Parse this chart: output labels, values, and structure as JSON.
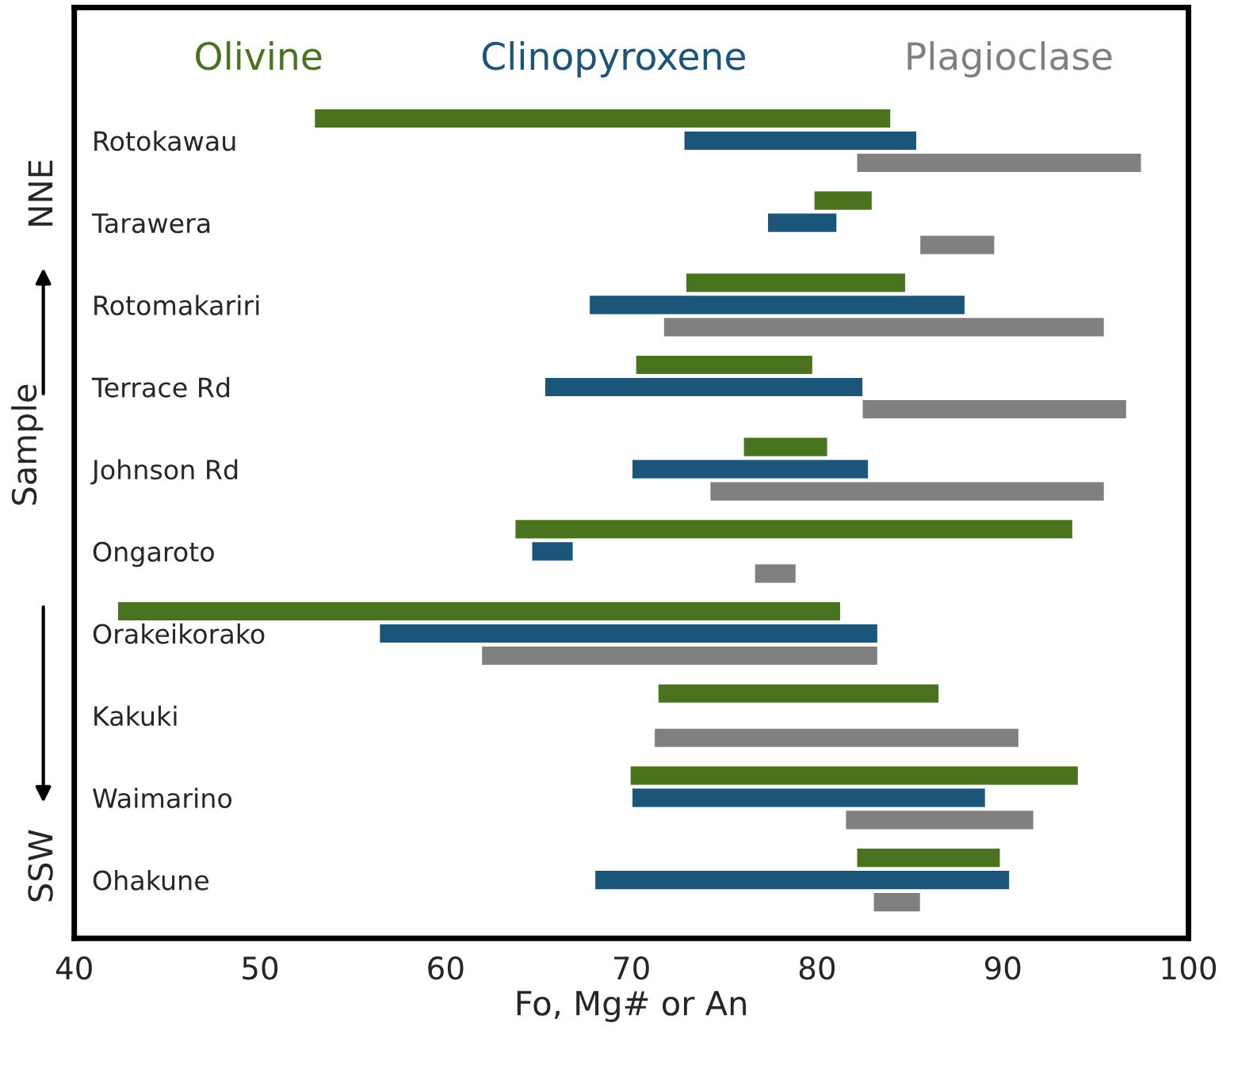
{
  "chart_data": {
    "type": "bar",
    "orientation": "horizontal",
    "xlabel": "Fo, Mg# or An",
    "ylabel": "Sample",
    "categories": [
      "Rotokawau",
      "Tarawera",
      "Rotomakariri",
      "Terrace Rd",
      "Johnson Rd",
      "Ongaroto",
      "Orakeikorako",
      "Kakuki",
      "Waimarino",
      "Ohakune"
    ],
    "series": [
      {
        "name": "Olivine",
        "color": "#4a7320",
        "base": [
          52.9,
          79.8,
          72.9,
          70.2,
          76.0,
          63.7,
          42.3,
          71.4,
          69.9,
          82.1
        ],
        "values": [
          31.1,
          3.2,
          11.9,
          9.6,
          4.6,
          30.1,
          39.0,
          15.2,
          24.2,
          7.8
        ]
      },
      {
        "name": "Clinopyroxene",
        "color": "#1b557a",
        "base": [
          72.8,
          77.3,
          67.7,
          65.3,
          70.0,
          64.6,
          56.4,
          null,
          70.0,
          68.0
        ],
        "values": [
          12.6,
          3.8,
          20.3,
          17.2,
          12.8,
          2.3,
          26.9,
          null,
          19.1,
          22.4
        ]
      },
      {
        "name": "Plagioclase",
        "color": "#808080",
        "base": [
          82.1,
          85.5,
          71.7,
          82.4,
          74.2,
          76.6,
          61.9,
          71.2,
          81.5,
          83.0
        ],
        "values": [
          15.4,
          4.1,
          23.8,
          14.3,
          21.3,
          2.3,
          21.4,
          19.7,
          10.2,
          2.6
        ]
      }
    ],
    "xlim": [
      40,
      100
    ],
    "xticks": [
      40,
      50,
      60,
      70,
      80,
      90,
      100
    ],
    "annotations": [
      "NNE",
      "SSW"
    ],
    "legend": "top",
    "grid": false
  }
}
